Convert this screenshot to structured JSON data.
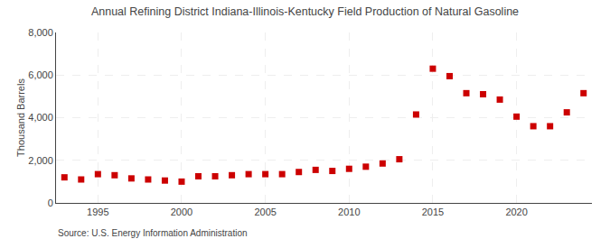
{
  "chart_data": {
    "type": "scatter",
    "title": "Annual Refining District Indiana-Illinois-Kentucky Field Production of Natural Gasoline",
    "ylabel": "Thousand Barrels",
    "annotations": [
      "Source: U.S. Energy Information Administration"
    ],
    "x": [
      1993,
      1994,
      1995,
      1996,
      1997,
      1998,
      1999,
      2000,
      2001,
      2002,
      2003,
      2004,
      2005,
      2006,
      2007,
      2008,
      2009,
      2010,
      2011,
      2012,
      2013,
      2014,
      2015,
      2016,
      2017,
      2018,
      2019,
      2020,
      2021,
      2022,
      2023,
      2024
    ],
    "values": [
      1200,
      1100,
      1350,
      1300,
      1150,
      1100,
      1050,
      1000,
      1250,
      1250,
      1300,
      1350,
      1350,
      1350,
      1450,
      1550,
      1500,
      1600,
      1700,
      1850,
      2050,
      4150,
      6300,
      5950,
      5150,
      5100,
      4850,
      4050,
      3600,
      3600,
      4250,
      5150
    ],
    "color": "#cc0000",
    "marker": "square",
    "xlim": [
      1992.5,
      2024.5
    ],
    "xticks": [
      1995,
      2000,
      2005,
      2010,
      2015,
      2020
    ],
    "ylim": [
      0,
      8000
    ],
    "yticks": [
      0,
      {
        "value": 2000,
        "label": "2,000"
      },
      {
        "value": 4000,
        "label": "4,000"
      },
      {
        "value": 6000,
        "label": "6,000"
      },
      {
        "value": 8000,
        "label": "8,000"
      }
    ],
    "grid": true
  }
}
